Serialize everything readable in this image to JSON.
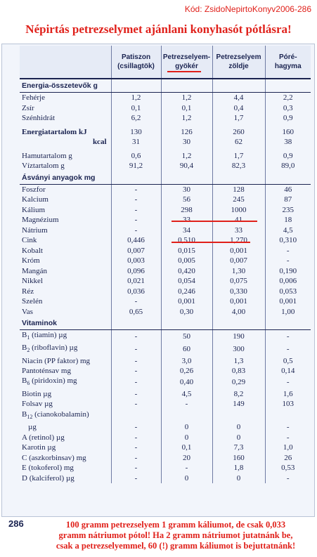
{
  "code_label": "Kód: ZsidoNepirtoKonyv2006-286",
  "headline": "Népirtás petrezselymet ajánlani konyhasót pótlásra!",
  "columns": [
    {
      "line1": "Patiszon",
      "line2": "(csillagtök)"
    },
    {
      "line1": "Petrezselyem-",
      "line2": "gyökér"
    },
    {
      "line1": "Petrezselyem",
      "line2": "zöldje"
    },
    {
      "line1": "Póré-",
      "line2": "hagyma"
    }
  ],
  "sections": {
    "energy": "Energia-összetevők g",
    "minerals": "Ásványi anyagok mg",
    "vitamins": "Vitaminok"
  },
  "rows": {
    "feherje": {
      "label": "Fehérje",
      "v": [
        "1,2",
        "1,2",
        "4,4",
        "2,2"
      ]
    },
    "zsir": {
      "label": "Zsír",
      "v": [
        "0,1",
        "0,1",
        "0,4",
        "0,3"
      ]
    },
    "szenhidrat": {
      "label": "Szénhidrát",
      "v": [
        "6,2",
        "1,2",
        "1,7",
        "0,9"
      ]
    },
    "energia_kj": {
      "label": "Energiatartalom kJ",
      "v": [
        "130",
        "126",
        "260",
        "160"
      ]
    },
    "energia_kcal": {
      "label": "kcal",
      "v": [
        "31",
        "30",
        "62",
        "38"
      ]
    },
    "hamu": {
      "label": "Hamutartalom g",
      "v": [
        "0,6",
        "1,2",
        "1,7",
        "0,9"
      ]
    },
    "viz": {
      "label": "Víztartalom g",
      "v": [
        "91,2",
        "90,4",
        "82,3",
        "89,0"
      ]
    },
    "foszfor": {
      "label": "Foszfor",
      "v": [
        "-",
        "30",
        "128",
        "46"
      ]
    },
    "kalcium": {
      "label": "Kalcium",
      "v": [
        "-",
        "56",
        "245",
        "87"
      ]
    },
    "kalium": {
      "label": "Kálium",
      "v": [
        "-",
        "298",
        "1000",
        "235"
      ]
    },
    "magnezium": {
      "label": "Magnézium",
      "v": [
        "-",
        "33",
        "41",
        "18"
      ]
    },
    "natrium": {
      "label": "Nátrium",
      "v": [
        "-",
        "34",
        "33",
        "4,5"
      ]
    },
    "cink": {
      "label": "Cink",
      "v": [
        "0,446",
        "0,510",
        "1,270",
        "0,310"
      ]
    },
    "kobalt": {
      "label": "Kobalt",
      "v": [
        "0,007",
        "0,015",
        "0,001",
        "-"
      ]
    },
    "krom": {
      "label": "Króm",
      "v": [
        "0,003",
        "0,005",
        "0,007",
        "-"
      ]
    },
    "mangan": {
      "label": "Mangán",
      "v": [
        "0,096",
        "0,420",
        "1,30",
        "0,190"
      ]
    },
    "nikkel": {
      "label": "Nikkel",
      "v": [
        "0,021",
        "0,054",
        "0,075",
        "0,006"
      ]
    },
    "rez": {
      "label": "Réz",
      "v": [
        "0,036",
        "0,246",
        "0,330",
        "0,053"
      ]
    },
    "szelen": {
      "label": "Szelén",
      "v": [
        "-",
        "0,001",
        "0,001",
        "0,001"
      ]
    },
    "vas": {
      "label": "Vas",
      "v": [
        "0,65",
        "0,30",
        "4,00",
        "1,00"
      ]
    },
    "b1": {
      "label_pre": "B",
      "sub": "1",
      "label_post": " (tiamin) µg",
      "v": [
        "-",
        "50",
        "190",
        "-"
      ]
    },
    "b2": {
      "label_pre": "B",
      "sub": "2",
      "label_post": " (riboflavin) µg",
      "v": [
        "-",
        "60",
        "300",
        "-"
      ]
    },
    "niacin": {
      "label": "Niacin (PP faktor) mg",
      "v": [
        "-",
        "3,0",
        "1,3",
        "0,5"
      ]
    },
    "pantotensav": {
      "label": "Pantoténsav mg",
      "v": [
        "-",
        "0,26",
        "0,83",
        "0,14"
      ]
    },
    "b6": {
      "label_pre": "B",
      "sub": "6",
      "label_post": " (piridoxin) mg",
      "v": [
        "-",
        "0,40",
        "0,29",
        "-"
      ]
    },
    "biotin": {
      "label": "Biotin µg",
      "v": [
        "-",
        "4,5",
        "8,2",
        "1,6"
      ]
    },
    "folsav": {
      "label": "Folsav µg",
      "v": [
        "-",
        "-",
        "149",
        "103"
      ]
    },
    "b12": {
      "label_pre": "B",
      "sub": "12",
      "label_post": " (cianokobalamin)",
      "label2": "µg",
      "v": [
        "-",
        "0",
        "0",
        "-"
      ]
    },
    "a_vit": {
      "label": "A (retinol) µg",
      "v": [
        "-",
        "0",
        "0",
        "-"
      ]
    },
    "karotin": {
      "label": "Karotin µg",
      "v": [
        "-",
        "0,1",
        "7,3",
        "1,0"
      ]
    },
    "c_vit": {
      "label": "C (aszkorbinsav) mg",
      "v": [
        "-",
        "20",
        "160",
        "26"
      ]
    },
    "e_vit": {
      "label": "E (tokoferol) mg",
      "v": [
        "-",
        "-",
        "1,8",
        "0,53"
      ]
    },
    "d_vit": {
      "label": "D (kalciferol) µg",
      "v": [
        "-",
        "0",
        "0",
        "-"
      ]
    }
  },
  "page_number": "286",
  "note_lines": [
    "100 gramm petrezselyem 1 gramm káliumot, de csak 0,033",
    "gramm nátriumot pótol!  Ha 2 gramm nátriumot jutatnánk be,",
    "csak a petrezselyemmel, 60 (!) gramm káliumot is bejuttatnánk!"
  ],
  "colors": {
    "annotation_red": "#e0201a",
    "ink": "#1a2350",
    "paper": "#f2f5fb"
  }
}
